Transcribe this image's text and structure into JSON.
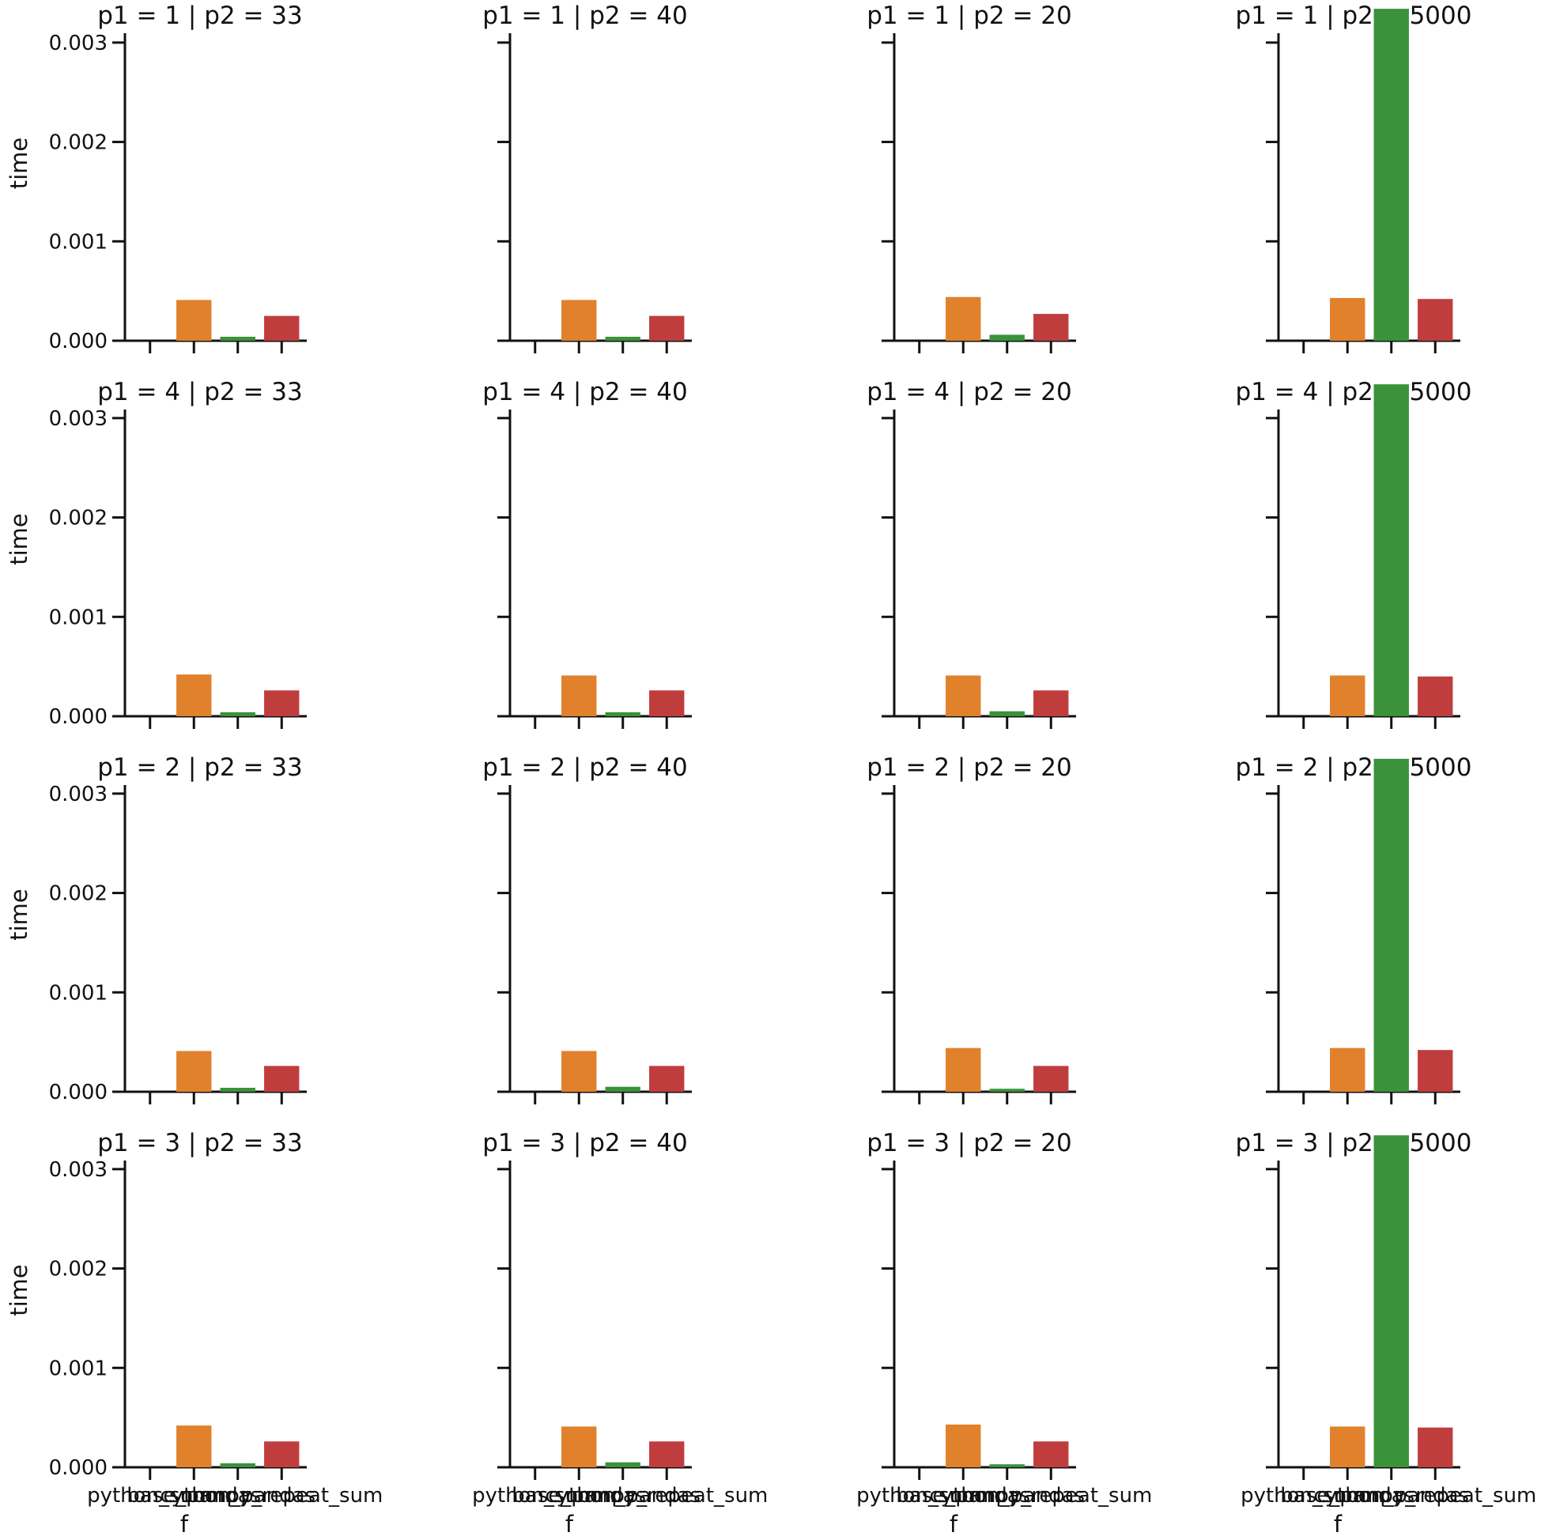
{
  "chart_data": {
    "type": "bar",
    "layout": "facet-grid",
    "rows_var": "p1",
    "cols_var": "p2",
    "row_values": [
      "1",
      "4",
      "2",
      "3"
    ],
    "col_values": [
      "33",
      "40",
      "20",
      "5000"
    ],
    "categories": [
      "python_sum",
      "base_pandas",
      "cython_pandas",
      "numpy_repeat_sum"
    ],
    "colors": [
      "#3274a1",
      "#e1812c",
      "#3a923a",
      "#c03d3e"
    ],
    "xlabel": "f",
    "ylabel": "time",
    "ylim": [
      0,
      0.0035
    ],
    "yticks": [
      "0.000",
      "0.001",
      "0.002",
      "0.003"
    ],
    "ytick_values": [
      0,
      0.001,
      0.002,
      0.003
    ],
    "panels": [
      {
        "p1": "1",
        "p2": "33",
        "title": "p1 = 1 | p2 = 33",
        "values": [
          0.0,
          0.00041,
          4e-05,
          0.00025
        ]
      },
      {
        "p1": "1",
        "p2": "40",
        "title": "p1 = 1 | p2 = 40",
        "values": [
          0.0,
          0.00041,
          4e-05,
          0.00025
        ]
      },
      {
        "p1": "1",
        "p2": "20",
        "title": "p1 = 1 | p2 = 20",
        "values": [
          0.0,
          0.00044,
          6e-05,
          0.00027
        ]
      },
      {
        "p1": "1",
        "p2": "5000",
        "title": "p1 = 1 | p2 = 5000",
        "values": [
          0.0,
          0.00043,
          0.00334,
          0.00042
        ]
      },
      {
        "p1": "4",
        "p2": "33",
        "title": "p1 = 4 | p2 = 33",
        "values": [
          0.0,
          0.00042,
          4e-05,
          0.00026
        ]
      },
      {
        "p1": "4",
        "p2": "40",
        "title": "p1 = 4 | p2 = 40",
        "values": [
          0.0,
          0.00041,
          4e-05,
          0.00026
        ]
      },
      {
        "p1": "4",
        "p2": "20",
        "title": "p1 = 4 | p2 = 20",
        "values": [
          0.0,
          0.00041,
          5e-05,
          0.00026
        ]
      },
      {
        "p1": "4",
        "p2": "5000",
        "title": "p1 = 4 | p2 = 5000",
        "values": [
          0.0,
          0.00041,
          0.00334,
          0.0004
        ]
      },
      {
        "p1": "2",
        "p2": "33",
        "title": "p1 = 2 | p2 = 33",
        "values": [
          0.0,
          0.00041,
          4e-05,
          0.00026
        ]
      },
      {
        "p1": "2",
        "p2": "40",
        "title": "p1 = 2 | p2 = 40",
        "values": [
          0.0,
          0.00041,
          5e-05,
          0.00026
        ]
      },
      {
        "p1": "2",
        "p2": "20",
        "title": "p1 = 2 | p2 = 20",
        "values": [
          0.0,
          0.00044,
          3e-05,
          0.00026
        ]
      },
      {
        "p1": "2",
        "p2": "5000",
        "title": "p1 = 2 | p2 = 5000",
        "values": [
          0.0,
          0.00044,
          0.00335,
          0.00042
        ]
      },
      {
        "p1": "3",
        "p2": "33",
        "title": "p1 = 3 | p2 = 33",
        "values": [
          0.0,
          0.00042,
          4e-05,
          0.00026
        ]
      },
      {
        "p1": "3",
        "p2": "40",
        "title": "p1 = 3 | p2 = 40",
        "values": [
          0.0,
          0.00041,
          5e-05,
          0.00026
        ]
      },
      {
        "p1": "3",
        "p2": "20",
        "title": "p1 = 3 | p2 = 20",
        "values": [
          0.0,
          0.00043,
          3e-05,
          0.00026
        ]
      },
      {
        "p1": "3",
        "p2": "5000",
        "title": "p1 = 3 | p2 = 5000",
        "values": [
          0.0,
          0.00041,
          0.00334,
          0.0004
        ]
      }
    ],
    "grid": false,
    "legend": "none",
    "sharey": true
  }
}
